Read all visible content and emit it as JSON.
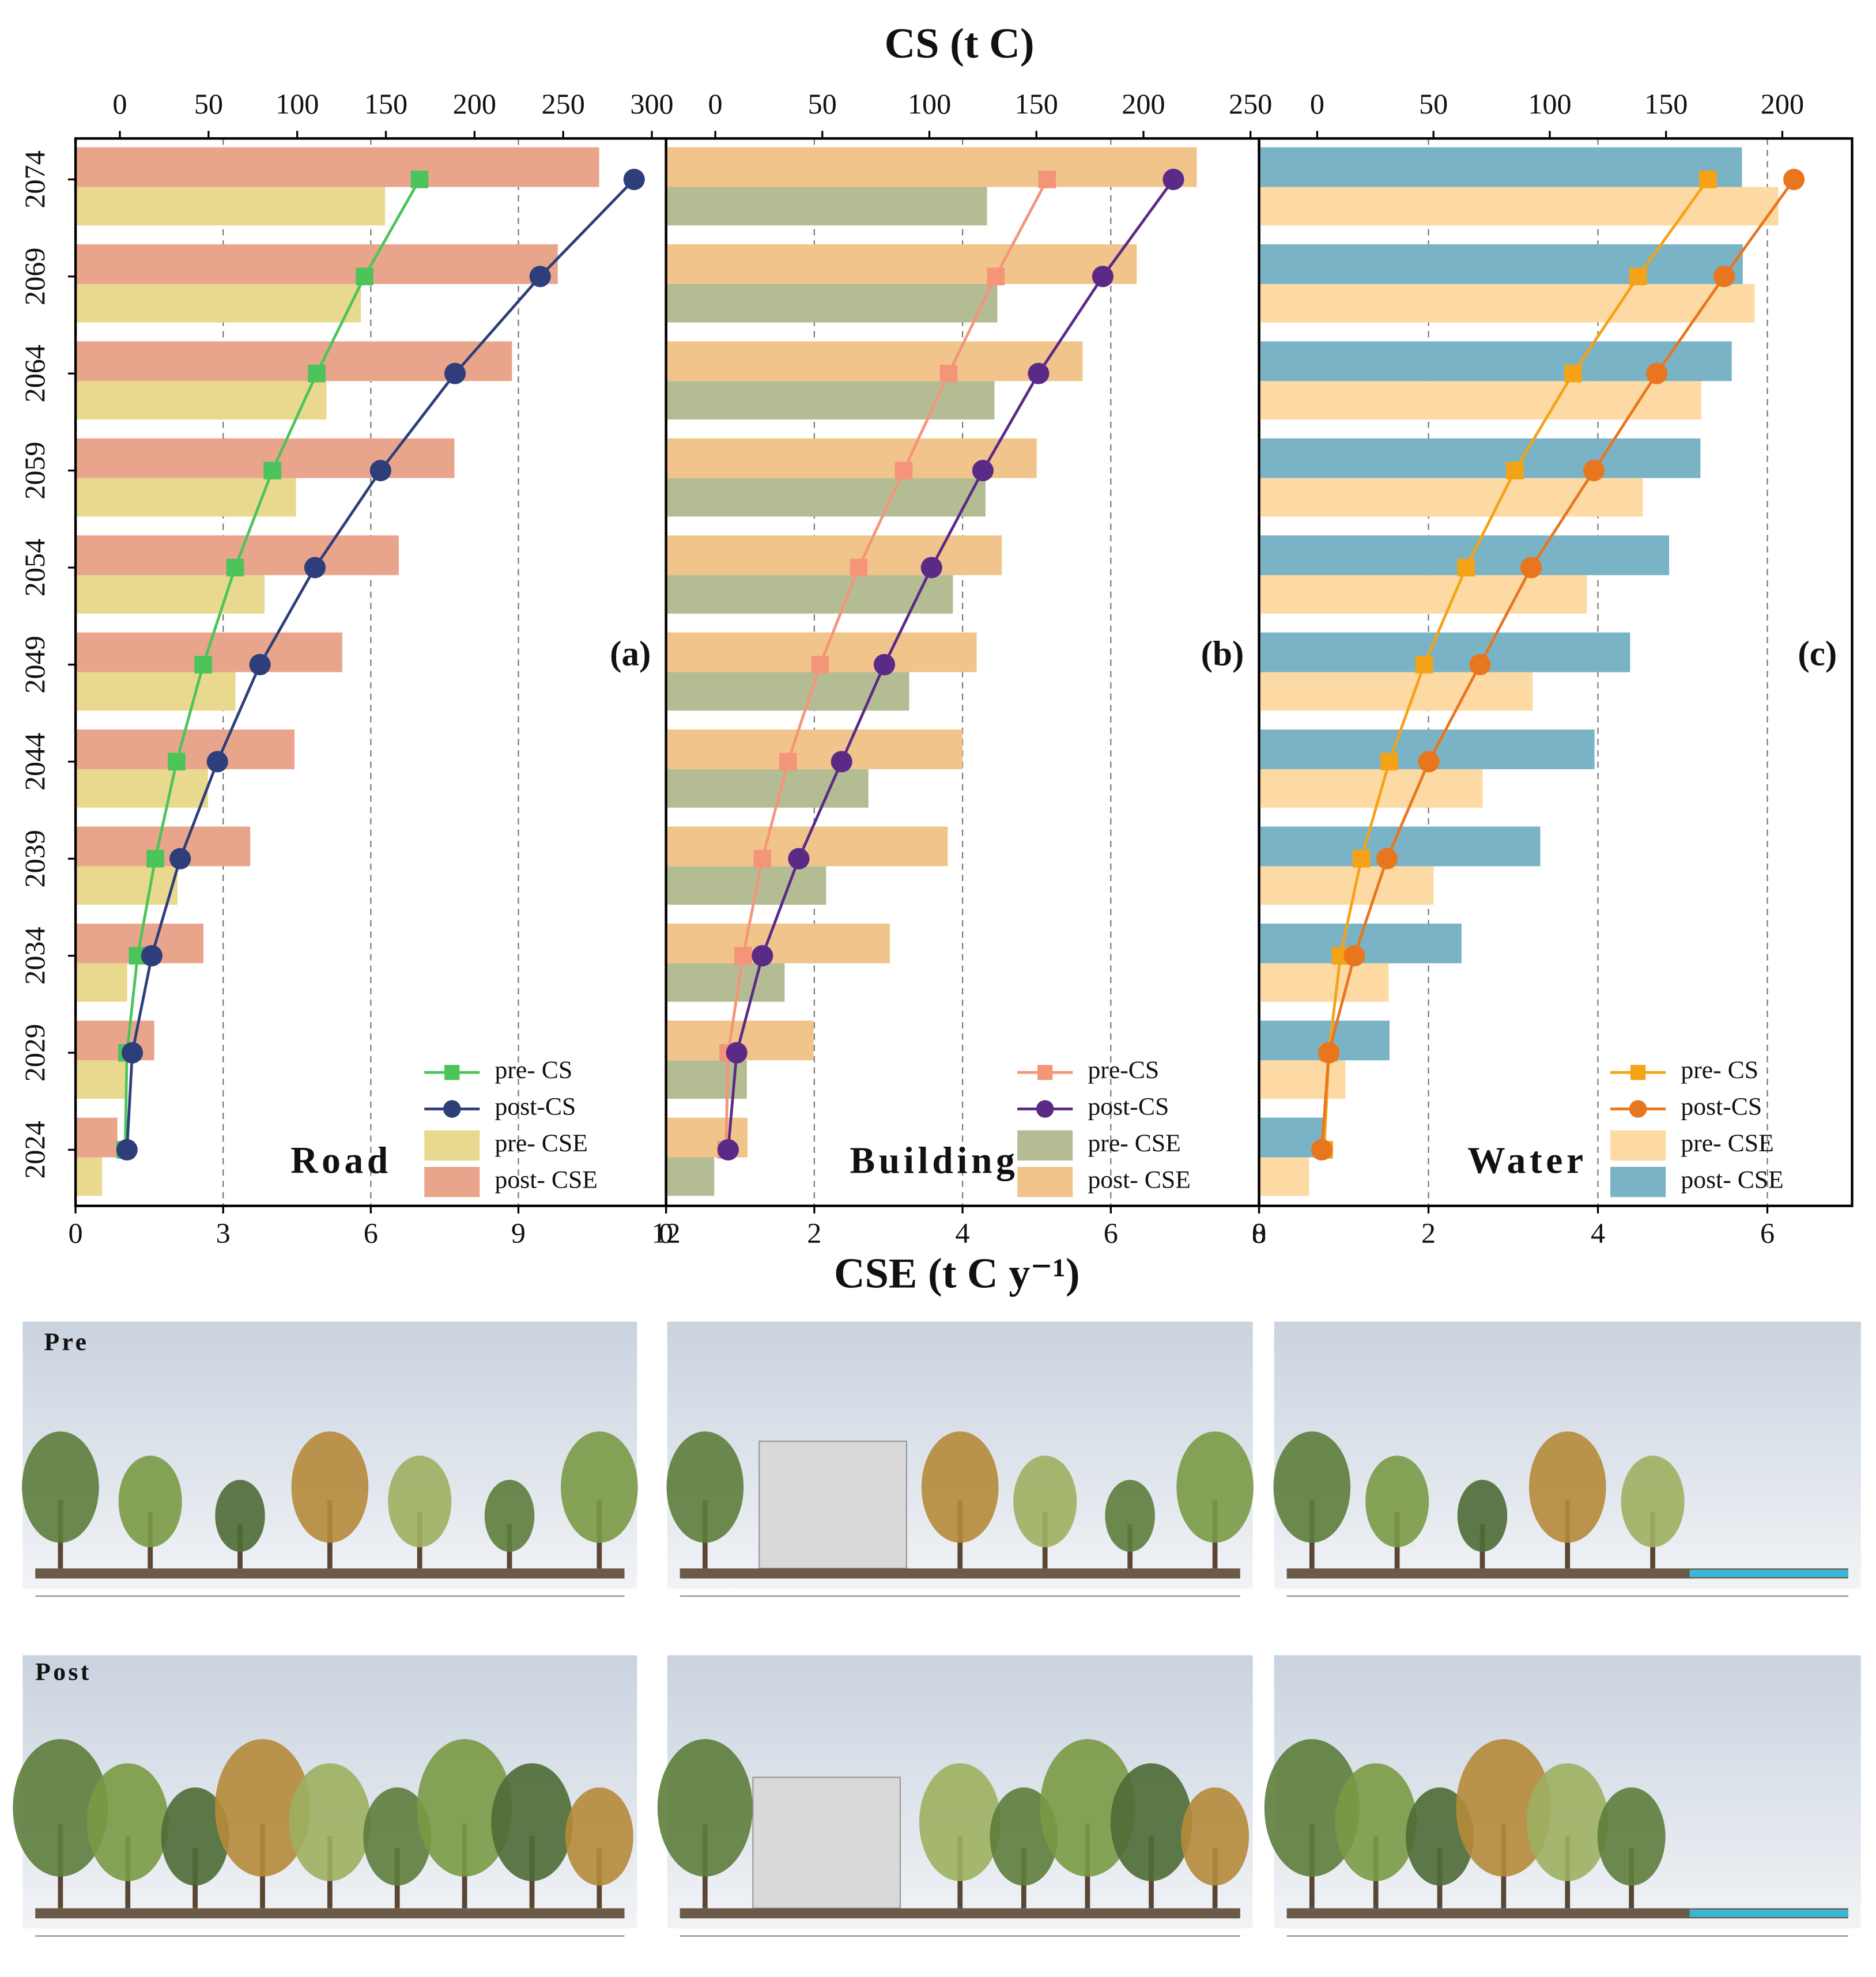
{
  "axis_titles": {
    "top": "CS (t C)",
    "bottom": "CSE (t C y⁻¹)"
  },
  "photos": {
    "labels": [
      "Pre",
      "Post"
    ]
  },
  "chart_data": [
    {
      "type": "combo",
      "title": "Road",
      "label": "(a)",
      "categories": [
        "2024",
        "2029",
        "2034",
        "2039",
        "2044",
        "2049",
        "2054",
        "2059",
        "2064",
        "2069",
        "2074"
      ],
      "xlim": [
        0,
        12
      ],
      "xticks": [
        0,
        3,
        6,
        9,
        12
      ],
      "x2lim": [
        -25,
        308
      ],
      "x2ticks": [
        0,
        50,
        100,
        150,
        200,
        250,
        300
      ],
      "grid": true,
      "series": [
        {
          "name": "pre- CS",
          "kind": "line",
          "marker": "square",
          "axis": "x2",
          "color": "#4cc45a",
          "values": [
            3,
            4,
            10,
            20,
            32,
            47,
            65,
            86,
            111,
            138,
            169
          ]
        },
        {
          "name": "post-CS",
          "kind": "line",
          "marker": "circle",
          "axis": "x2",
          "color": "#2e3e7a",
          "values": [
            4,
            7,
            18,
            34,
            55,
            79,
            110,
            147,
            189,
            237,
            290
          ]
        },
        {
          "name": "pre- CSE",
          "kind": "bar",
          "color": "#e8d98f",
          "values": [
            0.54,
            1.02,
            1.05,
            2.07,
            2.69,
            3.25,
            3.84,
            4.48,
            5.1,
            5.8,
            6.29
          ]
        },
        {
          "name": "post- CSE",
          "kind": "bar",
          "color": "#e9a58c",
          "values": [
            0.85,
            1.6,
            2.6,
            3.55,
            4.45,
            5.42,
            6.57,
            7.7,
            8.87,
            9.8,
            10.64
          ]
        }
      ]
    },
    {
      "type": "combo",
      "title": "Building",
      "label": "(b)",
      "categories": [
        "2024",
        "2029",
        "2034",
        "2039",
        "2044",
        "2049",
        "2054",
        "2059",
        "2064",
        "2069",
        "2074"
      ],
      "xlim": [
        0,
        8
      ],
      "xticks": [
        0,
        2,
        4,
        6,
        8
      ],
      "x2lim": [
        -23,
        254
      ],
      "x2ticks": [
        0,
        50,
        100,
        150,
        200,
        250
      ],
      "grid": true,
      "series": [
        {
          "name": "pre-CS",
          "kind": "line",
          "marker": "square",
          "axis": "x2",
          "color": "#f4957a",
          "values": [
            5,
            6,
            13,
            22,
            34,
            49,
            67,
            88,
            109,
            131,
            155
          ]
        },
        {
          "name": "post-CS",
          "kind": "line",
          "marker": "circle",
          "axis": "x2",
          "color": "#5b2a86",
          "values": [
            6,
            10,
            22,
            39,
            59,
            79,
            101,
            125,
            151,
            181,
            214
          ]
        },
        {
          "name": "pre- CSE",
          "kind": "bar",
          "color": "#b4bc93",
          "values": [
            0.65,
            1.09,
            1.6,
            2.16,
            2.73,
            3.28,
            3.87,
            4.31,
            4.43,
            4.47,
            4.33
          ]
        },
        {
          "name": "post- CSE",
          "kind": "bar",
          "color": "#f0c48a",
          "values": [
            1.1,
            1.99,
            3.02,
            3.8,
            4.0,
            4.19,
            4.53,
            5.0,
            5.62,
            6.35,
            7.16
          ]
        }
      ]
    },
    {
      "type": "combo",
      "title": "Water",
      "label": "(c)",
      "categories": [
        "2024",
        "2029",
        "2034",
        "2039",
        "2044",
        "2049",
        "2054",
        "2059",
        "2064",
        "2069",
        "2074"
      ],
      "xlim": [
        0,
        7
      ],
      "xticks": [
        0,
        2,
        4,
        6
      ],
      "x2lim": [
        -25,
        230
      ],
      "x2ticks": [
        0,
        50,
        100,
        150,
        200
      ],
      "grid": true,
      "series": [
        {
          "name": "pre- CS",
          "kind": "line",
          "marker": "square",
          "axis": "x2",
          "color": "#f5a316",
          "values": [
            3,
            5,
            10,
            19,
            31,
            46,
            64,
            85,
            110,
            138,
            168
          ]
        },
        {
          "name": "post-CS",
          "kind": "line",
          "marker": "circle",
          "axis": "x2",
          "color": "#e8761f",
          "values": [
            2,
            5,
            16,
            30,
            48,
            70,
            92,
            119,
            146,
            175,
            205
          ]
        },
        {
          "name": "pre- CSE",
          "kind": "bar",
          "color": "#fdd9a3",
          "values": [
            0.59,
            1.02,
            1.53,
            2.06,
            2.64,
            3.23,
            3.87,
            4.53,
            5.22,
            5.85,
            6.13
          ]
        },
        {
          "name": "post- CSE",
          "kind": "bar",
          "color": "#7ab3c6",
          "values": [
            0.79,
            1.54,
            2.39,
            3.32,
            3.96,
            4.38,
            4.84,
            5.21,
            5.58,
            5.71,
            5.7
          ]
        }
      ]
    }
  ]
}
